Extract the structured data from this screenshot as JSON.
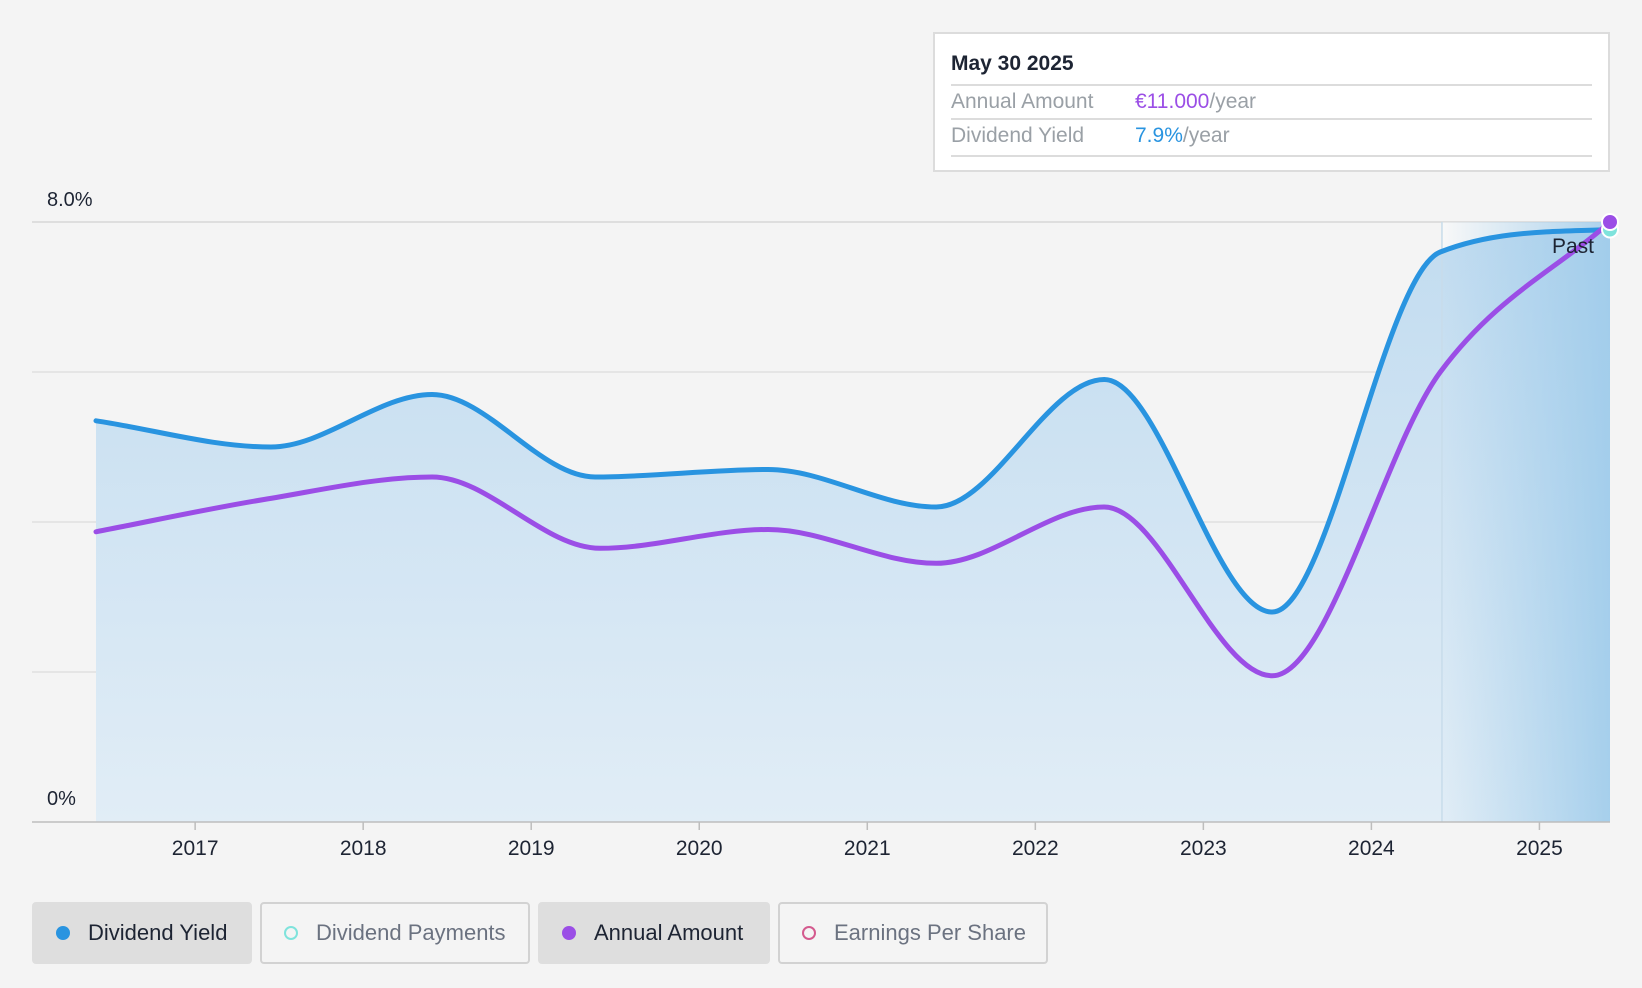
{
  "colors": {
    "dividend_yield": "#2994e0",
    "annual_amount": "#9b4ee6",
    "dividend_payments": "#7fe3dc",
    "earnings_per_share": "#d45a8e",
    "area_fill": "#c9e0f2",
    "grid": "#d6d6d6",
    "axis_text": "#1d2433"
  },
  "tooltip": {
    "date": "May 30 2025",
    "annual_amount_label": "Annual Amount",
    "annual_amount_value": "€11.000",
    "annual_amount_unit": "/year",
    "dividend_yield_label": "Dividend Yield",
    "dividend_yield_value": "7.9%",
    "dividend_yield_unit": "/year"
  },
  "legend": [
    {
      "label": "Dividend Yield",
      "active": true,
      "color": "#2994e0",
      "icon": "filled-dot-icon"
    },
    {
      "label": "Dividend Payments",
      "active": false,
      "color": "#7fe3dc",
      "icon": "hollow-dot-icon"
    },
    {
      "label": "Annual Amount",
      "active": true,
      "color": "#9b4ee6",
      "icon": "filled-dot-icon"
    },
    {
      "label": "Earnings Per Share",
      "active": false,
      "color": "#d45a8e",
      "icon": "hollow-dot-icon"
    }
  ],
  "chart_data": {
    "type": "line",
    "y_axis_labels": [
      "8.0%",
      "0%"
    ],
    "ylim": [
      0,
      8
    ],
    "xlim": [
      2016.1,
      2025.42
    ],
    "x_ticks": [
      2017,
      2018,
      2019,
      2020,
      2021,
      2022,
      2023,
      2024,
      2025
    ],
    "x_tick_labels": [
      "2017",
      "2018",
      "2019",
      "2020",
      "2021",
      "2022",
      "2023",
      "2024",
      "2025"
    ],
    "grid_y": [
      0,
      2,
      4,
      6,
      8
    ],
    "region": {
      "label": "Past",
      "x_start": 2024.42,
      "x_end": 2025.42
    },
    "series": [
      {
        "name": "Dividend Yield",
        "points": [
          [
            2016.41,
            5.35
          ],
          [
            2017.45,
            5.0
          ],
          [
            2018.41,
            5.7
          ],
          [
            2019.38,
            4.6
          ],
          [
            2020.41,
            4.7
          ],
          [
            2021.41,
            4.2
          ],
          [
            2022.41,
            5.9
          ],
          [
            2023.41,
            2.8
          ],
          [
            2024.41,
            7.6
          ],
          [
            2025.42,
            7.9
          ]
        ]
      },
      {
        "name": "Annual Amount",
        "points": [
          [
            2016.41,
            3.87
          ],
          [
            2017.41,
            4.3
          ],
          [
            2018.41,
            4.6
          ],
          [
            2019.41,
            3.65
          ],
          [
            2020.41,
            3.9
          ],
          [
            2021.41,
            3.45
          ],
          [
            2022.41,
            4.2
          ],
          [
            2023.41,
            1.95
          ],
          [
            2024.41,
            6.0
          ],
          [
            2025.42,
            8.0
          ]
        ]
      }
    ]
  }
}
